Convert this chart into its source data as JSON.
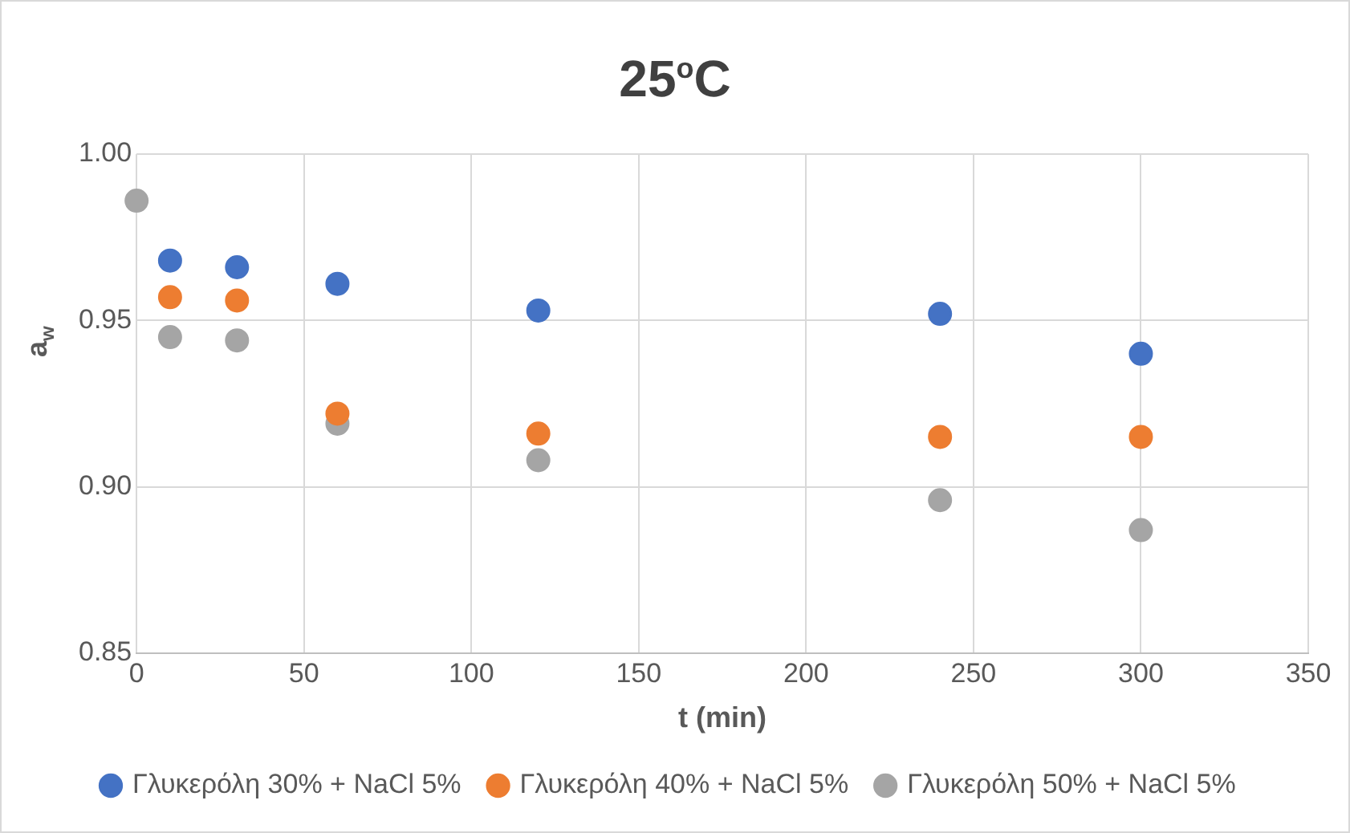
{
  "chart_data": {
    "type": "scatter",
    "title": "25$^{o}$C",
    "xlabel": "t (min)",
    "ylabel": "a$_{w}$",
    "x": [
      0,
      10,
      30,
      60,
      120,
      240,
      300
    ],
    "series": [
      {
        "name": "Γλυκερόλη 30% + NaCl 5%",
        "color": "#4472c4",
        "values": [
          null,
          0.968,
          0.966,
          0.961,
          0.953,
          0.952,
          0.94
        ]
      },
      {
        "name": "Γλυκερόλη 40% + NaCl 5%",
        "color": "#ed7d31",
        "values": [
          null,
          0.957,
          0.956,
          0.922,
          0.916,
          0.915,
          0.915
        ]
      },
      {
        "name": "Γλυκερόλη 50% + NaCl 5%",
        "color": "#a5a5a5",
        "values": [
          0.986,
          0.945,
          0.944,
          0.919,
          0.908,
          0.896,
          0.887
        ]
      }
    ],
    "xlim": [
      0,
      350
    ],
    "xticks": [
      0,
      50,
      100,
      150,
      200,
      250,
      300,
      350
    ],
    "ylim": [
      0.85,
      1.0
    ],
    "yticks": [
      {
        "value": 0.85,
        "label": "0.85"
      },
      {
        "value": 0.9,
        "label": "0.90"
      },
      {
        "value": 0.95,
        "label": "0.95"
      },
      {
        "value": 1.0,
        "label": "1.00"
      }
    ],
    "grid": true,
    "legend": "bottom",
    "marker": "circle"
  }
}
